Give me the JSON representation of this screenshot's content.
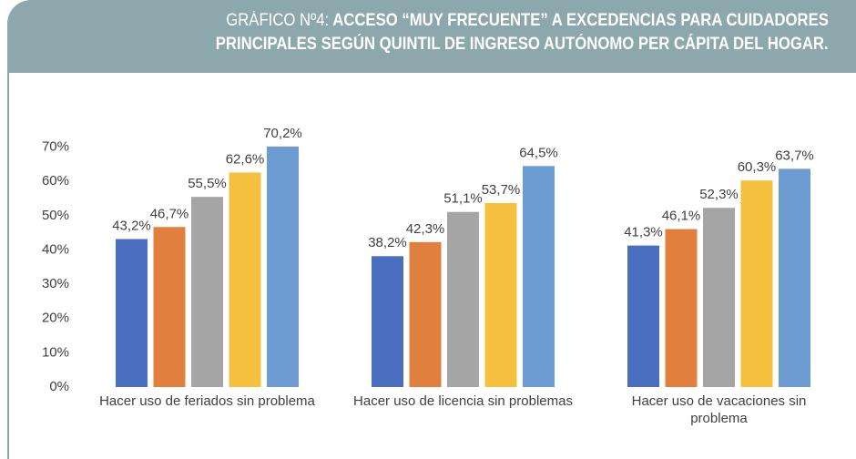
{
  "chart_data": {
    "type": "bar",
    "title_label": "GRÁFICO Nº4:",
    "title_lines": [
      "ACCESO “MUY FRECUENTE” A EXCEDENCIAS PARA CUIDADORES",
      "PRINCIPALES SEGÚN QUINTIL DE INGRESO AUTÓNOMO PER CÁPITA DEL HOGAR."
    ],
    "categories": [
      "Hacer uso de feriados sin problema",
      "Hacer uso de licencia sin problemas",
      "Hacer uso de vacaciones sin problema"
    ],
    "series": [
      {
        "color": "#4a6fc0",
        "values": [
          43.2,
          38.2,
          41.3
        ],
        "value_labels": [
          "43,2%",
          "38,2%",
          "41,3%"
        ]
      },
      {
        "color": "#e07f3e",
        "values": [
          46.7,
          42.3,
          46.1
        ],
        "value_labels": [
          "46,7%",
          "42,3%",
          "46,1%"
        ]
      },
      {
        "color": "#a5a5a5",
        "values": [
          55.5,
          51.1,
          52.3
        ],
        "value_labels": [
          "55,5%",
          "51,1%",
          "52,3%"
        ]
      },
      {
        "color": "#f5c03e",
        "values": [
          62.6,
          53.7,
          60.3
        ],
        "value_labels": [
          "62,6%",
          "53,7%",
          "60,3%"
        ]
      },
      {
        "color": "#6b9bd1",
        "values": [
          70.2,
          64.5,
          63.7
        ],
        "value_labels": [
          "70,2%",
          "64,5%",
          "63,7%"
        ]
      }
    ],
    "ylim": [
      0,
      80
    ],
    "yticks": [
      {
        "value": 0,
        "label": "0%"
      },
      {
        "value": 10,
        "label": "10%"
      },
      {
        "value": 20,
        "label": "20%"
      },
      {
        "value": 30,
        "label": "30%"
      },
      {
        "value": 40,
        "label": "40%"
      },
      {
        "value": 50,
        "label": "50%"
      },
      {
        "value": 60,
        "label": "60%"
      },
      {
        "value": 70,
        "label": "70%"
      }
    ],
    "grid": false
  }
}
